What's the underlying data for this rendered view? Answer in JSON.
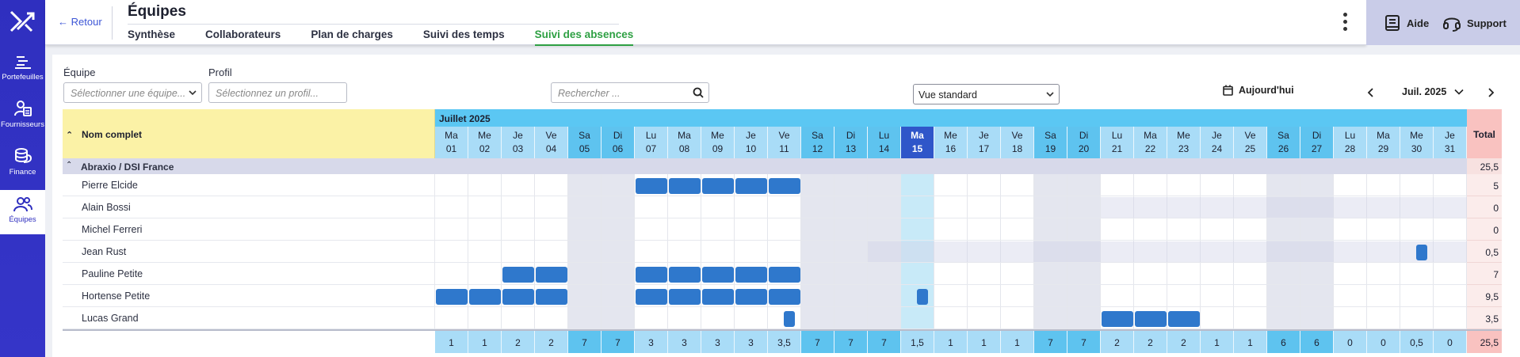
{
  "sidebar": {
    "items": [
      {
        "label": "Portefeuilles",
        "icon": "portfolio-icon"
      },
      {
        "label": "Fournisseurs",
        "icon": "suppliers-icon"
      },
      {
        "label": "Finance",
        "icon": "finance-icon"
      },
      {
        "label": "Équipes",
        "icon": "teams-icon",
        "active": true
      }
    ]
  },
  "header": {
    "back_label": "Retour",
    "title": "Équipes",
    "tabs": [
      {
        "label": "Synthèse"
      },
      {
        "label": "Collaborateurs"
      },
      {
        "label": "Plan de charges"
      },
      {
        "label": "Suivi des temps"
      },
      {
        "label": "Suivi des absences",
        "active": true
      }
    ],
    "help_label": "Aide",
    "support_label": "Support"
  },
  "filters": {
    "team_label": "Équipe",
    "team_placeholder": "Sélectionner une équipe...",
    "profile_label": "Profil",
    "profile_placeholder": "Sélectionnez un profil...",
    "search_placeholder": "Rechercher ...",
    "view_value": "Vue standard",
    "today_label": "Aujourd'hui",
    "month_value": "Juil. 2025"
  },
  "table": {
    "name_header": "Nom complet",
    "month_label": "Juillet 2025",
    "total_header": "Total",
    "group_label": "Abraxio / DSI France",
    "group_total": "25,5",
    "days": [
      {
        "dow": "Ma",
        "num": "01",
        "total": "1"
      },
      {
        "dow": "Me",
        "num": "02",
        "total": "1"
      },
      {
        "dow": "Je",
        "num": "03",
        "total": "2"
      },
      {
        "dow": "Ve",
        "num": "04",
        "total": "2"
      },
      {
        "dow": "Sa",
        "num": "05",
        "total": "7",
        "weekend": true
      },
      {
        "dow": "Di",
        "num": "06",
        "total": "7",
        "weekend": true
      },
      {
        "dow": "Lu",
        "num": "07",
        "total": "3"
      },
      {
        "dow": "Ma",
        "num": "08",
        "total": "3"
      },
      {
        "dow": "Me",
        "num": "09",
        "total": "3"
      },
      {
        "dow": "Je",
        "num": "10",
        "total": "3"
      },
      {
        "dow": "Ve",
        "num": "11",
        "total": "3,5"
      },
      {
        "dow": "Sa",
        "num": "12",
        "total": "7",
        "weekend": true
      },
      {
        "dow": "Di",
        "num": "13",
        "total": "7",
        "weekend": true
      },
      {
        "dow": "Lu",
        "num": "14",
        "total": "7",
        "weekend": true
      },
      {
        "dow": "Ma",
        "num": "15",
        "total": "1,5",
        "today": true
      },
      {
        "dow": "Me",
        "num": "16",
        "total": "1"
      },
      {
        "dow": "Je",
        "num": "17",
        "total": "1"
      },
      {
        "dow": "Ve",
        "num": "18",
        "total": "1"
      },
      {
        "dow": "Sa",
        "num": "19",
        "total": "7",
        "weekend": true
      },
      {
        "dow": "Di",
        "num": "20",
        "total": "7",
        "weekend": true
      },
      {
        "dow": "Lu",
        "num": "21",
        "total": "2"
      },
      {
        "dow": "Ma",
        "num": "22",
        "total": "2"
      },
      {
        "dow": "Me",
        "num": "23",
        "total": "2"
      },
      {
        "dow": "Je",
        "num": "24",
        "total": "1"
      },
      {
        "dow": "Ve",
        "num": "25",
        "total": "1"
      },
      {
        "dow": "Sa",
        "num": "26",
        "total": "6",
        "weekend": true
      },
      {
        "dow": "Di",
        "num": "27",
        "total": "6",
        "weekend": true
      },
      {
        "dow": "Lu",
        "num": "28",
        "total": "0"
      },
      {
        "dow": "Ma",
        "num": "29",
        "total": "0"
      },
      {
        "dow": "Me",
        "num": "30",
        "total": "0,5"
      },
      {
        "dow": "Je",
        "num": "31",
        "total": "0"
      }
    ],
    "grand_total": "25,5",
    "rows": [
      {
        "name": "Pierre Elcide",
        "total": "5",
        "absences": [
          [
            6,
            1
          ],
          [
            7,
            1
          ],
          [
            8,
            1
          ],
          [
            9,
            1
          ],
          [
            10,
            1
          ]
        ]
      },
      {
        "name": "Alain Bossi",
        "total": "0",
        "absences": [],
        "greyed_from": 20
      },
      {
        "name": "Michel Ferreri",
        "total": "0",
        "absences": []
      },
      {
        "name": "Jean Rust",
        "total": "0,5",
        "absences": [
          [
            29,
            0.5
          ]
        ],
        "greyed_from": 13
      },
      {
        "name": "Pauline Petite",
        "total": "7",
        "absences": [
          [
            2,
            1
          ],
          [
            3,
            1
          ],
          [
            6,
            1
          ],
          [
            7,
            1
          ],
          [
            8,
            1
          ],
          [
            9,
            1
          ],
          [
            10,
            1
          ]
        ]
      },
      {
        "name": "Hortense Petite",
        "total": "9,5",
        "absences": [
          [
            0,
            1
          ],
          [
            1,
            1
          ],
          [
            2,
            1
          ],
          [
            3,
            1
          ],
          [
            6,
            1
          ],
          [
            7,
            1
          ],
          [
            8,
            1
          ],
          [
            9,
            1
          ],
          [
            10,
            1
          ],
          [
            14,
            0.5
          ]
        ]
      },
      {
        "name": "Lucas Grand",
        "total": "3,5",
        "absences": [
          [
            10,
            0.5
          ],
          [
            20,
            1
          ],
          [
            21,
            1
          ],
          [
            22,
            1
          ]
        ]
      }
    ]
  }
}
